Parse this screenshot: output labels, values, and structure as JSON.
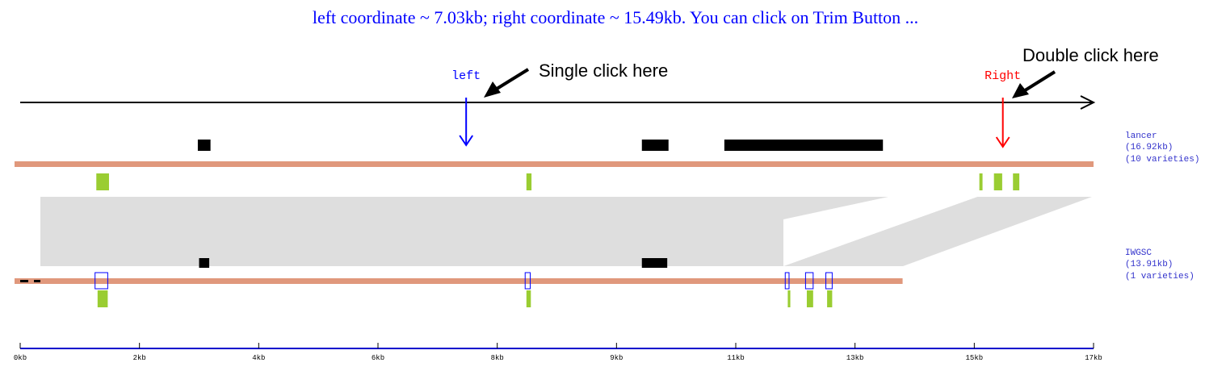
{
  "status_message": "left coordinate ~ 7.03kb; right coordinate ~ 15.49kb. You can click on Trim Button ...",
  "colors": {
    "status_text": "#0000ff",
    "left_marker": "#0000ff",
    "right_marker": "#ff0000",
    "chromosome_bar": "#e0987c",
    "gene_block": "#000000",
    "green_feature": "#9acd32",
    "synteny": "#dedede",
    "track_label": "#3333cc",
    "axis": "#0000cc"
  },
  "markers": {
    "left": {
      "label": "left",
      "kb": 7.03
    },
    "right": {
      "label": "Right",
      "kb": 15.49
    }
  },
  "annotations": {
    "single_click": "Single click here",
    "double_click": "Double click here"
  },
  "tracks": [
    {
      "name": "lancer",
      "length_text": "(16.92kb)",
      "varieties_text": "(10 varieties)",
      "length_kb": 16.92,
      "black_blocks": [
        [
          2.8,
          3.0
        ],
        [
          9.8,
          10.22
        ],
        [
          11.1,
          13.6
        ]
      ],
      "green_features": [
        [
          1.2,
          1.4
        ],
        [
          7.98,
          8.06
        ],
        [
          15.12,
          15.17
        ],
        [
          15.35,
          15.48
        ],
        [
          15.65,
          15.75
        ]
      ],
      "blue_boxes": []
    },
    {
      "name": "IWGSC",
      "length_text": "(13.91kb)",
      "varieties_text": "(1 varieties)",
      "length_kb": 13.91,
      "black_blocks": [
        [
          2.82,
          2.98
        ],
        [
          9.8,
          10.2
        ]
      ],
      "green_features": [
        [
          1.22,
          1.38
        ],
        [
          7.98,
          8.05
        ],
        [
          12.1,
          12.14
        ],
        [
          12.4,
          12.5
        ],
        [
          12.72,
          12.8
        ]
      ],
      "blue_boxes": [
        [
          1.18,
          1.38
        ],
        [
          7.96,
          8.04
        ],
        [
          12.06,
          12.12
        ],
        [
          12.38,
          12.5
        ],
        [
          12.7,
          12.8
        ]
      ]
    }
  ],
  "axis": {
    "min_kb": 0,
    "max_kb": 16.92,
    "ticks": [
      {
        "kb": 0,
        "label": "0kb"
      },
      {
        "kb": 1.88,
        "label": "2kb"
      },
      {
        "kb": 3.76,
        "label": "4kb"
      },
      {
        "kb": 5.64,
        "label": "6kb"
      },
      {
        "kb": 7.52,
        "label": "8kb"
      },
      {
        "kb": 9.4,
        "label": "9kb"
      },
      {
        "kb": 11.28,
        "label": "11kb"
      },
      {
        "kb": 13.16,
        "label": "13kb"
      },
      {
        "kb": 15.04,
        "label": "15kb"
      },
      {
        "kb": 16.92,
        "label": "17kb"
      }
    ]
  }
}
